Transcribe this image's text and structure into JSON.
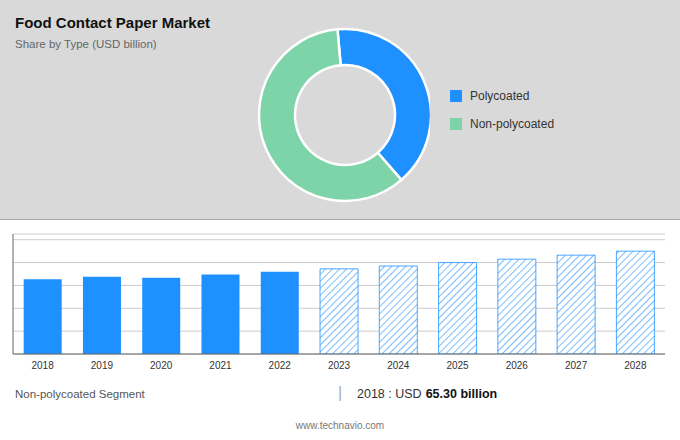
{
  "chart_data": [
    {
      "type": "pie",
      "title": "Food Contact Paper Market",
      "subtitle": "Share by Type (USD billion)",
      "categories": [
        "Polycoated",
        "Non-polycoated"
      ],
      "values": [
        40,
        60
      ],
      "colors": [
        "#1e90ff",
        "#7dd4a8"
      ],
      "legend": "right"
    },
    {
      "type": "bar",
      "categories": [
        "2018",
        "2019",
        "2020",
        "2021",
        "2022",
        "2023",
        "2024",
        "2025",
        "2026",
        "2027",
        "2028"
      ],
      "series": [
        {
          "color": "#1e90ff",
          "values": [
            65.3,
            67.5,
            66.8,
            69.5,
            72.0,
            null,
            null,
            null,
            null,
            null,
            null
          ]
        },
        {
          "color": "#1e90ff",
          "values": [
            null,
            null,
            null,
            null,
            null,
            74.5,
            77.0,
            80.0,
            83.0,
            86.5,
            90.0
          ]
        }
      ],
      "stacked": true,
      "ylim": [
        0,
        105
      ],
      "yticks": [
        0,
        20,
        40,
        60,
        80,
        100
      ],
      "grid": true,
      "tick_labels": "x",
      "annotations": [
        "Non-polycoated Segment",
        "|",
        "2018 : USD",
        "65.30 billion",
        "www.technavio.com"
      ]
    }
  ]
}
